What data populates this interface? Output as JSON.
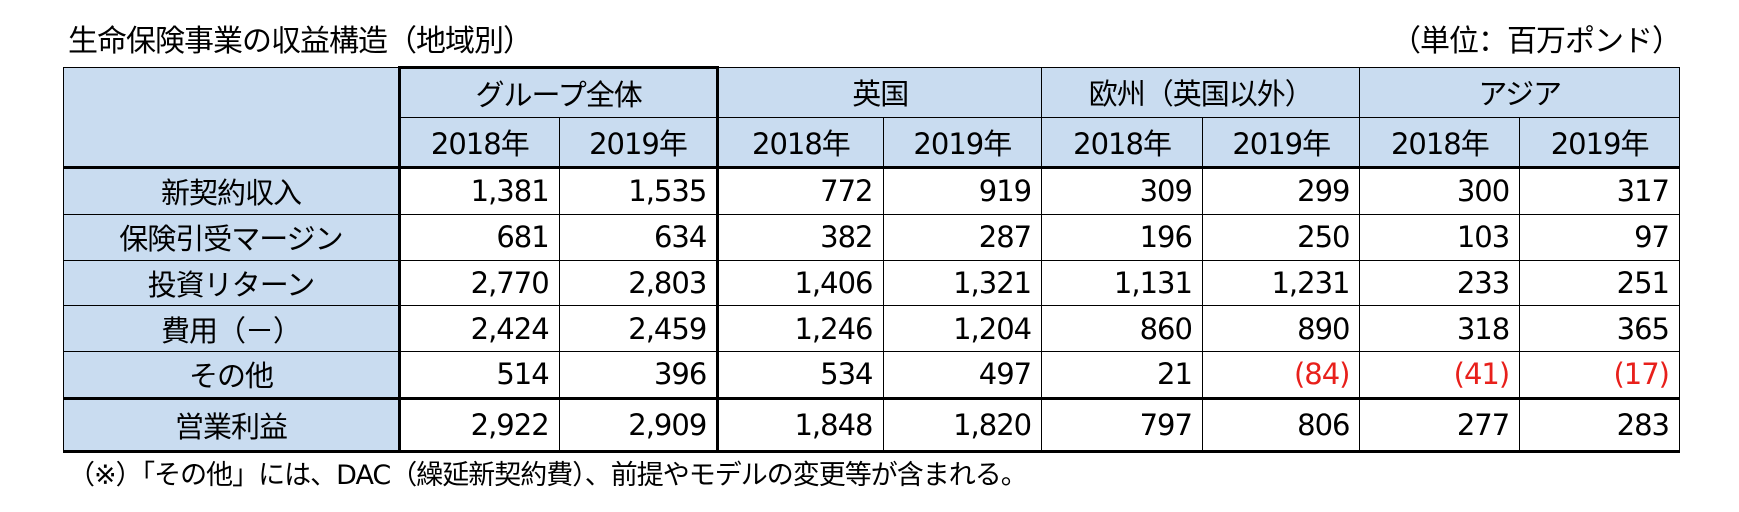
{
  "title": "生命保険事業の収益構造（地域別）",
  "unit": "（単位：百万ポンド）",
  "regions": [
    "グループ全体",
    "英国",
    "欧州（英国以外）",
    "アジア"
  ],
  "years": [
    "2018年",
    "2019年",
    "2018年",
    "2019年",
    "2018年",
    "2019年",
    "2018年",
    "2019年"
  ],
  "rows": [
    {
      "label": "新契約収入",
      "values": [
        "1,381",
        "1,535",
        "772",
        "919",
        "309",
        "299",
        "300",
        "317"
      ]
    },
    {
      "label": "保険引受マージン",
      "values": [
        "681",
        "634",
        "382",
        "287",
        "196",
        "250",
        "103",
        "97"
      ]
    },
    {
      "label": "投資リターン",
      "values": [
        "2,770",
        "2,803",
        "1,406",
        "1,321",
        "1,131",
        "1,231",
        "233",
        "251"
      ]
    },
    {
      "label": "費用（－）",
      "values": [
        "2,424",
        "2,459",
        "1,246",
        "1,204",
        "860",
        "890",
        "318",
        "365"
      ]
    },
    {
      "label": "その他",
      "values": [
        "514",
        "396",
        "534",
        "497",
        "21",
        "(84)",
        "(41)",
        "(17)"
      ]
    }
  ],
  "total": {
    "label": "営業利益",
    "values": [
      "2,922",
      "2,909",
      "1,848",
      "1,820",
      "797",
      "806",
      "277",
      "283"
    ]
  },
  "note": "（※）「その他」には、DAC（繰延新契約費）、前提やモデルの変更等が含まれる。",
  "colors": {
    "header_bg": "#c9dcf0",
    "negative": "#e8201b"
  }
}
